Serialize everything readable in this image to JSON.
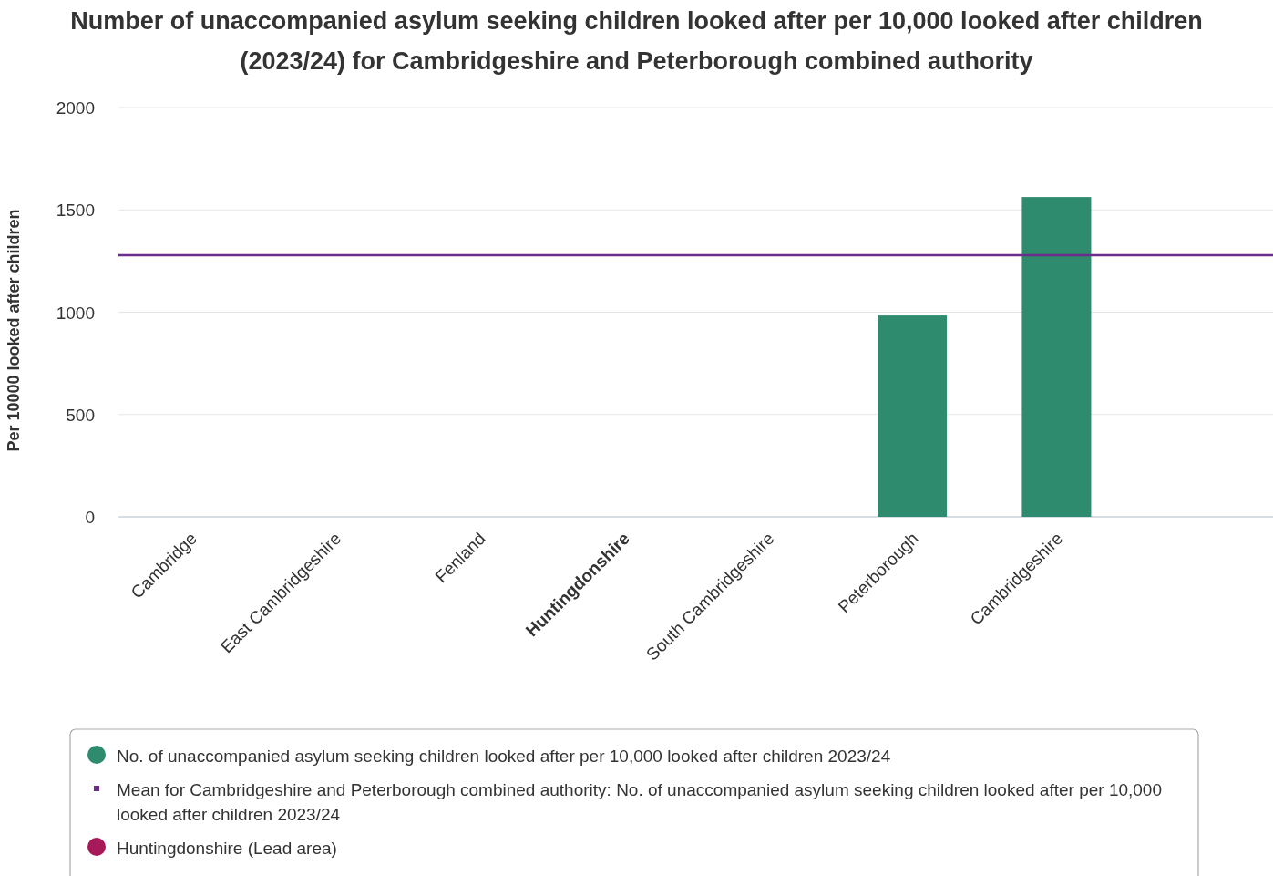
{
  "chart_data": {
    "type": "bar",
    "title": "Number of unaccompanied asylum seeking children looked after per 10,000 looked after children (2023/24) for Cambridgeshire and Peterborough combined authority",
    "ylabel": "Per 10000 looked after children",
    "categories": [
      "Cambridge",
      "East Cambridgeshire",
      "Fenland",
      "Huntingdonshire",
      "South Cambridgeshire",
      "Peterborough",
      "Cambridgeshire"
    ],
    "series": [
      {
        "name": "No. of unaccompanied asylum seeking children looked after per 10,000 looked after children 2023/24",
        "color": "#2e8b6e",
        "values": [
          null,
          null,
          null,
          null,
          null,
          984,
          1563
        ]
      },
      {
        "name": "Huntingdonshire (Lead area)",
        "color": "#a8195a",
        "values": [
          null,
          null,
          null,
          0,
          null,
          null,
          null
        ]
      }
    ],
    "ref_lines": [
      {
        "axis": "y",
        "value": 1278,
        "label": "Mean for Cambridgeshire and Peterborough combined authority: No. of unaccompanied asylum seeking children looked after per 10,000 looked after children 2023/24",
        "color": "#6b2c8a"
      }
    ],
    "ylim": [
      0,
      2000
    ],
    "yticks": [
      0,
      500,
      1000,
      1500,
      2000
    ],
    "grid": "y",
    "legend": "bottom"
  }
}
